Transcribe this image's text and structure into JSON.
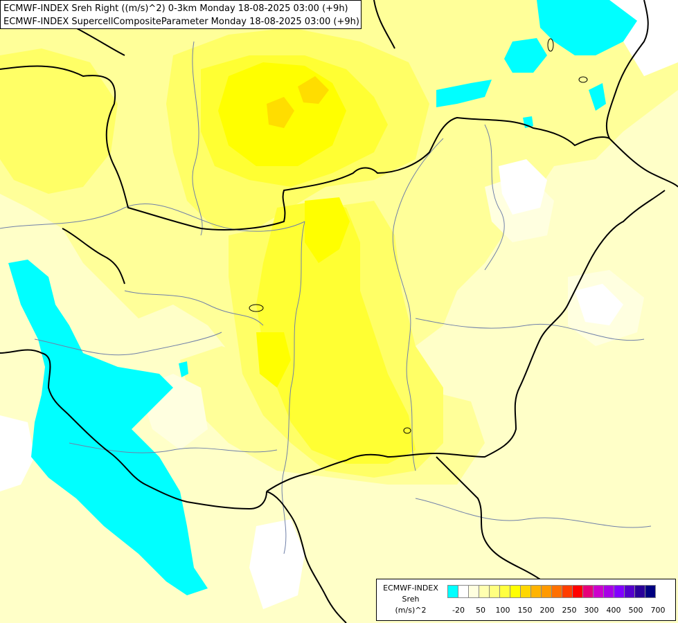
{
  "title": {
    "line1": "ECMWF-INDEX Sreh Right ((m/s)^2) 0-3km Monday 18-08-2025 03:00 (+9h)",
    "line2": "ECMWF-INDEX SupercellCompositeParameter Monday 18-08-2025 03:00 (+9h)"
  },
  "legend": {
    "line1": "ECMWF-INDEX",
    "line2": "Sreh",
    "line3": "(m/s)^2",
    "colors": [
      "#00ffff",
      "#ffffff",
      "#ffffdf",
      "#ffffb0",
      "#ffff80",
      "#ffff40",
      "#ffff00",
      "#ffd700",
      "#ffb300",
      "#ff9900",
      "#ff7000",
      "#ff3d00",
      "#ff0000",
      "#e6007a",
      "#cc00cc",
      "#a800e6",
      "#8200ff",
      "#5500cc",
      "#2a0099",
      "#000080"
    ],
    "ticks": [
      "-20",
      "50",
      "100",
      "150",
      "200",
      "250",
      "300",
      "400",
      "500",
      "700"
    ]
  },
  "map": {
    "colors": {
      "background": "#ffffc8",
      "pale": "#ffffe0",
      "light": "#ffff99",
      "mid": "#ffff66",
      "strong": "#ffff33",
      "yellow": "#ffff00",
      "gold": "#ffdd00",
      "cyan": "#00ffff",
      "white": "#ffffff",
      "border": "#000000",
      "river": "#6f7fa8"
    }
  }
}
